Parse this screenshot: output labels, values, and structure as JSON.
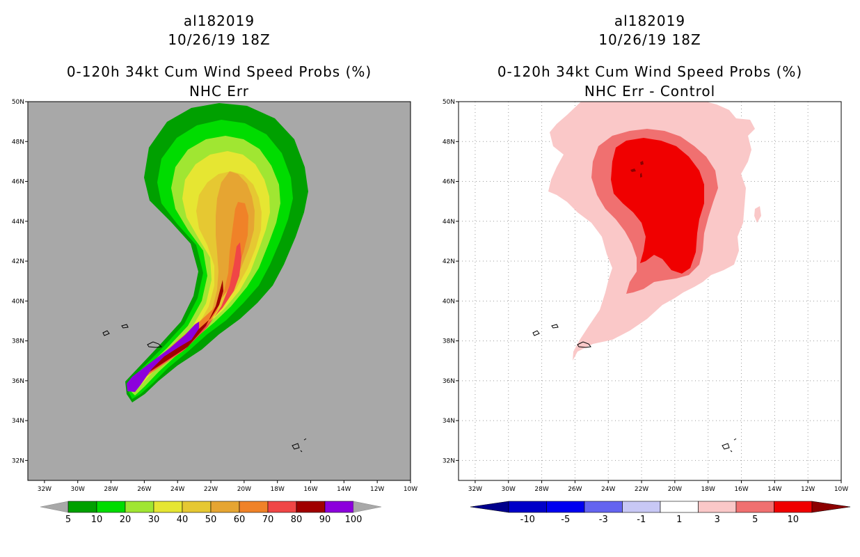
{
  "panels": [
    {
      "storm_id": "al182019",
      "datetime": "10/26/19 18Z",
      "product": "0-120h 34kt Cum Wind Speed Probs (%)",
      "subtitle": "NHC Err"
    },
    {
      "storm_id": "al182019",
      "datetime": "10/26/19 18Z",
      "product": "0-120h 34kt Cum Wind Speed Probs (%)",
      "subtitle": "NHC Err - Control"
    }
  ],
  "chart_data": [
    {
      "type": "heatmap",
      "title": "0-120h 34kt Cum Wind Speed Probs (%) — NHC Err",
      "background_color": "#a8a8a8",
      "x_ticks": [
        "32W",
        "30W",
        "28W",
        "26W",
        "24W",
        "22W",
        "20W",
        "18W",
        "16W",
        "14W",
        "12W",
        "10W"
      ],
      "y_ticks": [
        "32N",
        "34N",
        "36N",
        "38N",
        "40N",
        "42N",
        "44N",
        "46N",
        "48N",
        "50N"
      ],
      "lon_range": [
        -33,
        -10
      ],
      "lat_range": [
        31,
        50
      ],
      "grid": false,
      "colorbar": {
        "labels": [
          "5",
          "10",
          "20",
          "30",
          "40",
          "50",
          "60",
          "70",
          "80",
          "90",
          "100"
        ],
        "colors": [
          "#00a000",
          "#00dc00",
          "#a0e632",
          "#e6e632",
          "#e6c832",
          "#e6a532",
          "#f08228",
          "#f04646",
          "#a00000",
          "#8c00dc"
        ]
      }
    },
    {
      "type": "heatmap",
      "title": "0-120h 34kt Cum Wind Speed Probs (%) — NHC Err - Control",
      "background_color": "#ffffff",
      "x_ticks": [
        "32W",
        "30W",
        "28W",
        "26W",
        "24W",
        "22W",
        "20W",
        "18W",
        "16W",
        "14W",
        "12W",
        "10W"
      ],
      "y_ticks": [
        "32N",
        "34N",
        "36N",
        "38N",
        "40N",
        "42N",
        "44N",
        "46N",
        "48N",
        "50N"
      ],
      "lon_range": [
        -33,
        -10
      ],
      "lat_range": [
        31,
        50
      ],
      "grid": true,
      "colorbar": {
        "labels": [
          "-10",
          "-5",
          "-3",
          "-1",
          "1",
          "3",
          "5",
          "10"
        ],
        "colors": [
          "#0000c8",
          "#0000f0",
          "#6464f0",
          "#c8c8f5",
          "#ffffff",
          "#fac8c8",
          "#f07070",
          "#f00000"
        ],
        "left_arrow_color": "#00008c",
        "right_arrow_color": "#8c0000"
      }
    }
  ]
}
